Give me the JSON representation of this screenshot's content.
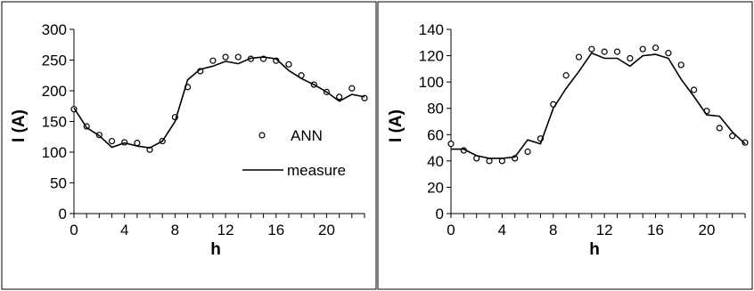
{
  "chart_data": [
    {
      "type": "line",
      "xlabel": "h",
      "ylabel": "I (A)",
      "xlim": [
        0,
        23
      ],
      "ylim": [
        0,
        300
      ],
      "xticks": [
        0,
        4,
        8,
        12,
        16,
        20
      ],
      "yticks": [
        0,
        50,
        100,
        150,
        200,
        250,
        300
      ],
      "grid": false,
      "legend": {
        "position": "right",
        "entries": [
          "ANN",
          "measure"
        ]
      },
      "x": [
        0,
        1,
        2,
        3,
        4,
        5,
        6,
        7,
        8,
        9,
        10,
        11,
        12,
        13,
        14,
        15,
        16,
        17,
        18,
        19,
        20,
        21,
        22,
        23
      ],
      "series": [
        {
          "name": "ANN",
          "style": "markers",
          "values": [
            170,
            142,
            128,
            118,
            116,
            115,
            104,
            118,
            157,
            206,
            232,
            249,
            255,
            255,
            252,
            252,
            249,
            243,
            225,
            210,
            198,
            190,
            204,
            188
          ]
        },
        {
          "name": "measure",
          "style": "line",
          "values": [
            172,
            140,
            127,
            108,
            115,
            110,
            107,
            118,
            150,
            218,
            235,
            240,
            248,
            244,
            253,
            255,
            252,
            233,
            220,
            210,
            198,
            183,
            194,
            190
          ]
        }
      ]
    },
    {
      "type": "line",
      "xlabel": "h",
      "ylabel": "I (A)",
      "xlim": [
        0,
        23
      ],
      "ylim": [
        0,
        140
      ],
      "xticks": [
        0,
        4,
        8,
        12,
        16,
        20
      ],
      "yticks": [
        0,
        20,
        40,
        60,
        80,
        100,
        120,
        140
      ],
      "grid": false,
      "x": [
        0,
        1,
        2,
        3,
        4,
        5,
        6,
        7,
        8,
        9,
        10,
        11,
        12,
        13,
        14,
        15,
        16,
        17,
        18,
        19,
        20,
        21,
        22,
        23
      ],
      "series": [
        {
          "name": "ANN",
          "style": "markers",
          "values": [
            53,
            48,
            42,
            40,
            40,
            42,
            47,
            57,
            83,
            105,
            119,
            125,
            123,
            123,
            118,
            125,
            126,
            122,
            113,
            94,
            78,
            65,
            59,
            54
          ]
        },
        {
          "name": "measure",
          "style": "line",
          "values": [
            49,
            49,
            44,
            42,
            42,
            43,
            56,
            53,
            80,
            95,
            108,
            122,
            118,
            118,
            112,
            120,
            121,
            118,
            102,
            89,
            75,
            74,
            62,
            53
          ]
        }
      ]
    }
  ]
}
